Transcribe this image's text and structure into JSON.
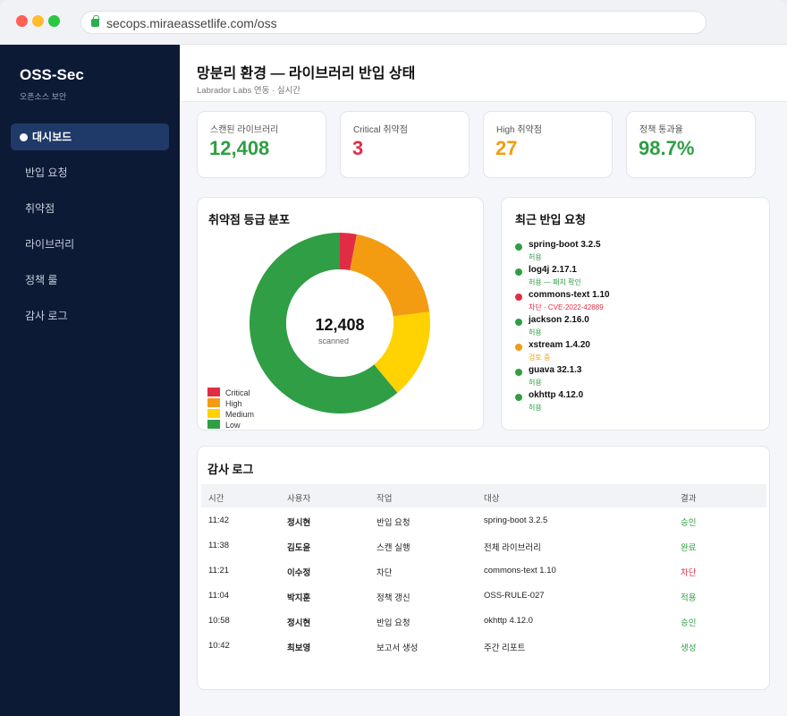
{
  "browser": {
    "url": "secops.miraeassetlife.com/oss"
  },
  "sidebar": {
    "brand": "OSS-Sec",
    "brand_sub": "오픈소스 보안",
    "items": [
      {
        "label": "대시보드",
        "active": true
      },
      {
        "label": "반입 요청"
      },
      {
        "label": "취약점"
      },
      {
        "label": "라이브러리"
      },
      {
        "label": "정책 룰"
      },
      {
        "label": "감사 로그"
      }
    ]
  },
  "header": {
    "title": "망분리 환경 — 라이브러리 반입 상태",
    "subtitle": "Labrador Labs 연동 · 실시간"
  },
  "stats": [
    {
      "label": "스캔된 라이브러리",
      "value": "12,408",
      "color": "#2f9e44"
    },
    {
      "label": "Critical 취약점",
      "value": "3",
      "color": "#e02d45"
    },
    {
      "label": "High 취약점",
      "value": "27",
      "color": "#f39c12"
    },
    {
      "label": "정책 통과율",
      "value": "98.7%",
      "color": "#2f9e44"
    }
  ],
  "severity": {
    "title": "취약점 등급 분포",
    "center_value": "12,408",
    "center_label": "scanned",
    "legend": [
      {
        "label": "Critical",
        "color": "#e02d45"
      },
      {
        "label": "High",
        "color": "#f39c12"
      },
      {
        "label": "Medium",
        "color": "#ffd200"
      },
      {
        "label": "Low",
        "color": "#2f9e44"
      }
    ],
    "segments_percent": [
      3,
      20,
      16,
      61
    ]
  },
  "recent": {
    "title": "최근 반입 요청",
    "items": [
      {
        "name": "spring-boot 3.2.5",
        "status": "허용",
        "color": "#2f9e44"
      },
      {
        "name": "log4j 2.17.1",
        "status": "허용 — 패치 확인",
        "color": "#2f9e44"
      },
      {
        "name": "commons-text 1.10",
        "status": "차단 · CVE-2022-42889",
        "color": "#e02d45"
      },
      {
        "name": "jackson 2.16.0",
        "status": "허용",
        "color": "#2f9e44"
      },
      {
        "name": "xstream 1.4.20",
        "status": "검토 중",
        "color": "#f39c12"
      },
      {
        "name": "guava 32.1.3",
        "status": "허용",
        "color": "#2f9e44"
      },
      {
        "name": "okhttp 4.12.0",
        "status": "허용",
        "color": "#2f9e44"
      }
    ]
  },
  "audit": {
    "title": "감사 로그",
    "columns": [
      "시간",
      "사용자",
      "작업",
      "대상",
      "결과"
    ],
    "rows": [
      {
        "time": "11:42",
        "user": "정시현",
        "action": "반입 요청",
        "target": "spring-boot 3.2.5",
        "result": "승인",
        "color": "#2f9e44"
      },
      {
        "time": "11:38",
        "user": "김도윤",
        "action": "스캔 실행",
        "target": "전체 라이브러리",
        "result": "완료",
        "color": "#2f9e44"
      },
      {
        "time": "11:21",
        "user": "이수정",
        "action": "차단",
        "target": "commons-text 1.10",
        "result": "차단",
        "color": "#e02d45"
      },
      {
        "time": "11:04",
        "user": "박지훈",
        "action": "정책 갱신",
        "target": "OSS-RULE-027",
        "result": "적용",
        "color": "#2f9e44"
      },
      {
        "time": "10:58",
        "user": "정시현",
        "action": "반입 요청",
        "target": "okhttp 4.12.0",
        "result": "승인",
        "color": "#2f9e44"
      },
      {
        "time": "10:42",
        "user": "최보영",
        "action": "보고서 생성",
        "target": "주간 리포트",
        "result": "생성",
        "color": "#2f9e44"
      }
    ]
  }
}
